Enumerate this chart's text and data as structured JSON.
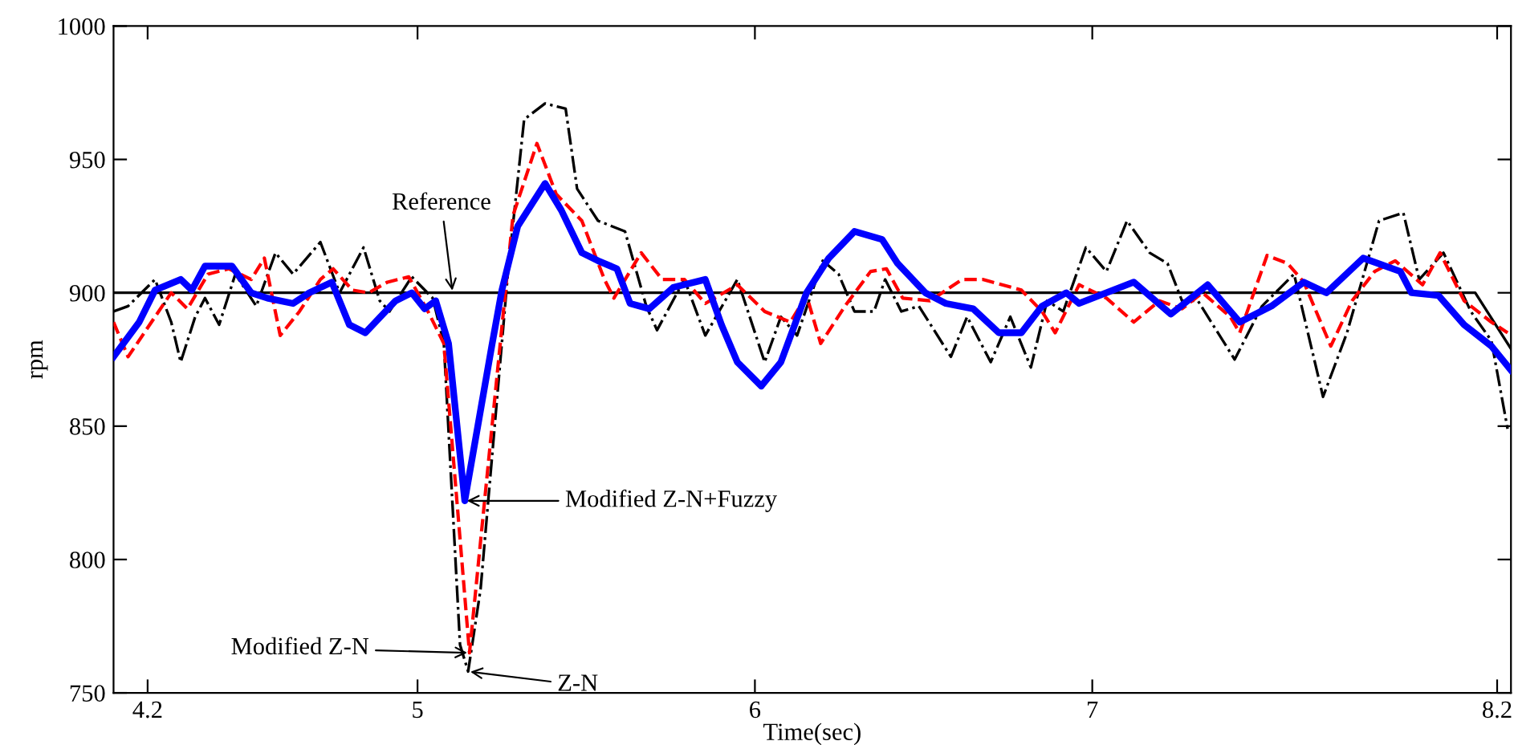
{
  "chart_data": {
    "type": "line",
    "xlabel": "Time(sec)",
    "ylabel": "rpm",
    "xlim": [
      4.099,
      8.241
    ],
    "ylim": [
      750,
      1000
    ],
    "xticks": [
      4.2,
      5,
      6,
      7,
      8.2
    ],
    "yticks": [
      750,
      800,
      850,
      900,
      950,
      1000
    ],
    "grid": false,
    "marker": "none",
    "series": [
      {
        "color": "#000000",
        "line_style": "solid",
        "x": [
          4.099,
          8.135,
          8.241
        ],
        "values": [
          900,
          900,
          879
        ]
      },
      {
        "color": "#000000",
        "line_style": "dashdot",
        "x": [
          4.099,
          4.142,
          4.222,
          4.27,
          4.298,
          4.341,
          4.37,
          4.412,
          4.46,
          4.522,
          4.579,
          4.631,
          4.712,
          4.769,
          4.84,
          4.888,
          4.917,
          4.983,
          5.045,
          5.078,
          5.126,
          5.15,
          5.187,
          5.269,
          5.316,
          5.378,
          5.439,
          5.473,
          5.535,
          5.615,
          5.678,
          5.71,
          5.791,
          5.853,
          5.948,
          6.029,
          6.077,
          6.125,
          6.201,
          6.248,
          6.295,
          6.353,
          6.386,
          6.434,
          6.486,
          6.581,
          6.629,
          6.699,
          6.757,
          6.818,
          6.866,
          6.914,
          6.981,
          7.042,
          7.103,
          7.17,
          7.223,
          7.266,
          7.313,
          7.422,
          7.503,
          7.598,
          7.684,
          7.755,
          7.85,
          7.922,
          7.969,
          8.041,
          8.122,
          8.183,
          8.231
        ],
        "values": [
          893,
          895,
          905,
          889,
          874,
          891,
          898,
          888,
          907,
          895,
          915,
          907,
          919,
          900,
          917,
          897,
          893,
          906,
          898,
          881,
          768,
          758,
          789,
          909,
          965,
          971,
          969,
          939,
          927,
          923,
          895,
          886,
          905,
          884,
          905,
          874,
          891,
          884,
          912,
          907,
          893,
          893,
          905,
          893,
          895,
          876,
          891,
          874,
          891,
          872,
          897,
          893,
          917,
          908,
          927,
          915,
          911,
          897,
          897,
          875,
          895,
          907,
          861,
          885,
          927,
          930,
          905,
          915,
          893,
          882,
          849
        ]
      },
      {
        "color": "#ff0000",
        "line_style": "dashed",
        "x": [
          4.099,
          4.142,
          4.222,
          4.27,
          4.318,
          4.379,
          4.441,
          4.507,
          4.546,
          4.593,
          4.65,
          4.712,
          4.75,
          4.807,
          4.855,
          4.911,
          4.974,
          5.031,
          5.078,
          5.154,
          5.22,
          5.283,
          5.354,
          5.411,
          5.487,
          5.554,
          5.582,
          5.663,
          5.725,
          5.791,
          5.853,
          5.948,
          6.029,
          6.105,
          6.153,
          6.195,
          6.267,
          6.343,
          6.39,
          6.438,
          6.519,
          6.614,
          6.675,
          6.79,
          6.851,
          6.89,
          6.961,
          7.042,
          7.123,
          7.199,
          7.266,
          7.327,
          7.409,
          7.437,
          7.518,
          7.579,
          7.627,
          7.707,
          7.77,
          7.837,
          7.898,
          7.979,
          8.031,
          8.102,
          8.183,
          8.231
        ],
        "values": [
          889,
          876,
          891,
          900,
          894,
          907,
          909,
          905,
          913,
          884,
          893,
          905,
          909,
          901,
          900,
          904,
          906,
          893,
          881,
          765,
          849,
          929,
          956,
          937,
          927,
          905,
          898,
          915,
          905,
          905,
          896,
          903,
          893,
          889,
          899,
          881,
          895,
          908,
          909,
          898,
          897,
          905,
          905,
          901,
          893,
          885,
          903,
          898,
          889,
          897,
          894,
          900,
          891,
          885,
          914,
          911,
          904,
          880,
          897,
          908,
          912,
          903,
          915,
          897,
          889,
          885
        ]
      },
      {
        "color": "#0000ff",
        "line_style": "solid",
        "x": [
          4.099,
          4.175,
          4.222,
          4.298,
          4.331,
          4.37,
          4.45,
          4.507,
          4.555,
          4.631,
          4.679,
          4.746,
          4.798,
          4.845,
          4.935,
          4.983,
          5.021,
          5.054,
          5.092,
          5.14,
          5.22,
          5.25,
          5.297,
          5.378,
          5.426,
          5.487,
          5.535,
          5.591,
          5.63,
          5.687,
          5.758,
          5.853,
          5.901,
          5.948,
          6.019,
          6.077,
          6.153,
          6.219,
          6.295,
          6.377,
          6.423,
          6.505,
          6.566,
          6.647,
          6.723,
          6.79,
          6.851,
          6.923,
          6.961,
          7.123,
          7.233,
          7.342,
          7.437,
          7.531,
          7.627,
          7.694,
          7.803,
          7.913,
          7.946,
          8.026,
          8.102,
          8.183,
          8.241
        ],
        "values": [
          876,
          889,
          901,
          905,
          901,
          910,
          910,
          900,
          898,
          896,
          900,
          904,
          888,
          885,
          897,
          900,
          894,
          897,
          881,
          822,
          880,
          901,
          925,
          941,
          931,
          915,
          912,
          909,
          896,
          894,
          902,
          905,
          888,
          874,
          865,
          874,
          900,
          913,
          923,
          920,
          911,
          900,
          896,
          894,
          885,
          885,
          895,
          900,
          896,
          904,
          892,
          903,
          889,
          895,
          904,
          900,
          913,
          908,
          900,
          899,
          888,
          880,
          871
        ]
      }
    ],
    "annotations": [
      {
        "text": "Reference",
        "x": 5.104,
        "y": 900
      },
      "Modified Z-N+Fuzzy",
      "Modified Z-N",
      "Z-N"
    ]
  }
}
